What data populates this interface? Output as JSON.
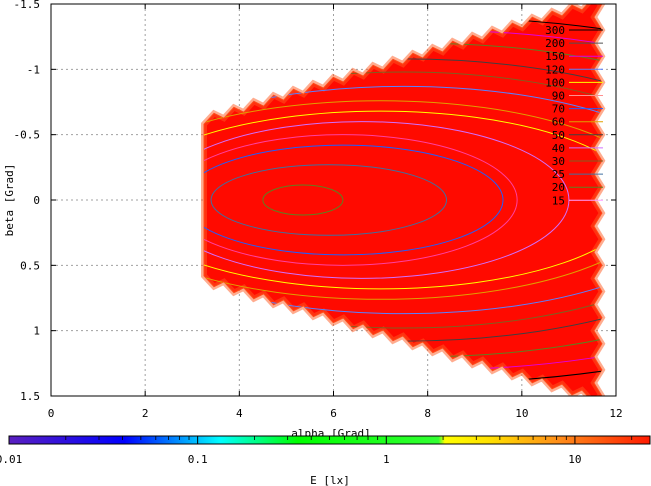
{
  "chart_data": {
    "type": "heatmap",
    "title": "",
    "xlabel": "alpha [Grad]",
    "ylabel": "beta [Grad]",
    "xlim": [
      0,
      12
    ],
    "ylim": [
      1.5,
      -1.5
    ],
    "y_axis_inverted": true,
    "x_ticks": [
      "0",
      "2",
      "4",
      "6",
      "8",
      "10",
      "12"
    ],
    "y_ticks": [
      "-1.5",
      "-1",
      "-0.5",
      "0",
      "0.5",
      "1",
      "1.5"
    ],
    "grid": true,
    "colorbar": {
      "label": "E [lx]",
      "scale": "log",
      "range": [
        0.01,
        25
      ],
      "ticks": [
        "0.01",
        "0.1",
        "1",
        "10"
      ],
      "colors": [
        "#5a1fbf",
        "#0000ff",
        "#00ffff",
        "#00ff00",
        "#ffff00",
        "#ff8c1a",
        "#ff0000"
      ]
    },
    "contour_levels": [
      {
        "label": "300",
        "color": "#000000"
      },
      {
        "label": "200",
        "color": "#505050"
      },
      {
        "label": "150",
        "color": "#e000e0"
      },
      {
        "label": "120",
        "color": "#5a80ff"
      },
      {
        "label": "100",
        "color": "#ffff00"
      },
      {
        "label": "90",
        "color": "#ff9090"
      },
      {
        "label": "70",
        "color": "#2060ff"
      },
      {
        "label": "60",
        "color": "#e0a000"
      },
      {
        "label": "50",
        "color": "#404040"
      },
      {
        "label": "40",
        "color": "#d070ff"
      },
      {
        "label": "30",
        "color": "#806020"
      },
      {
        "label": "25",
        "color": "#4070a0"
      },
      {
        "label": "20",
        "color": "#608020"
      },
      {
        "label": "15",
        "color": "#ffa0ff"
      }
    ],
    "illuminated_region": {
      "alpha_min": 3.25,
      "alpha_max": 11.7,
      "beta_half_width_at_min": 0.58,
      "beta_half_width_at_max": 1.5,
      "fill_color": "#ff0a00",
      "edge_color": "#ff3a10"
    },
    "peak": {
      "alpha": 5.35,
      "beta": 0.0
    },
    "contours": [
      {
        "cx": 5.35,
        "cy": 0.0,
        "rx": 0.85,
        "ry": 0.115,
        "color": "#608020"
      },
      {
        "cx": 5.9,
        "cy": 0.0,
        "rx": 2.5,
        "ry": 0.27,
        "color": "#4070a0"
      },
      {
        "cx": 6.2,
        "cy": 0.0,
        "rx": 3.4,
        "ry": 0.42,
        "color": "#2060ff"
      },
      {
        "cx": 6.2,
        "cy": 0.0,
        "rx": 3.7,
        "ry": 0.5,
        "color": "#ff40a0"
      },
      {
        "cx": 6.6,
        "cy": 0.0,
        "rx": 4.4,
        "ry": 0.6,
        "color": "#d070ff"
      },
      {
        "cx": 7.0,
        "cy": 0.0,
        "rx": 5.5,
        "ry": 0.68,
        "color": "#ffff00"
      },
      {
        "cx": 7.0,
        "cy": 0.0,
        "rx": 6.0,
        "ry": 0.76,
        "color": "#e0a000"
      },
      {
        "cx": 7.5,
        "cy": 0.0,
        "rx": 6.5,
        "ry": 0.87,
        "color": "#5a80ff"
      },
      {
        "cx": 7.5,
        "cy": 0.0,
        "rx": 7.0,
        "ry": 0.98,
        "color": "#806020"
      },
      {
        "cx": 7.5,
        "cy": 0.0,
        "rx": 7.8,
        "ry": 1.08,
        "color": "#404040"
      },
      {
        "cx": 7.8,
        "cy": 0.0,
        "rx": 8.5,
        "ry": 1.2,
        "color": "#608020"
      },
      {
        "cx": 8.0,
        "cy": 0.0,
        "rx": 9.5,
        "ry": 1.3,
        "color": "#e000e0"
      },
      {
        "cx": 8.0,
        "cy": 0.0,
        "rx": 10.5,
        "ry": 1.4,
        "color": "#000000"
      }
    ]
  }
}
